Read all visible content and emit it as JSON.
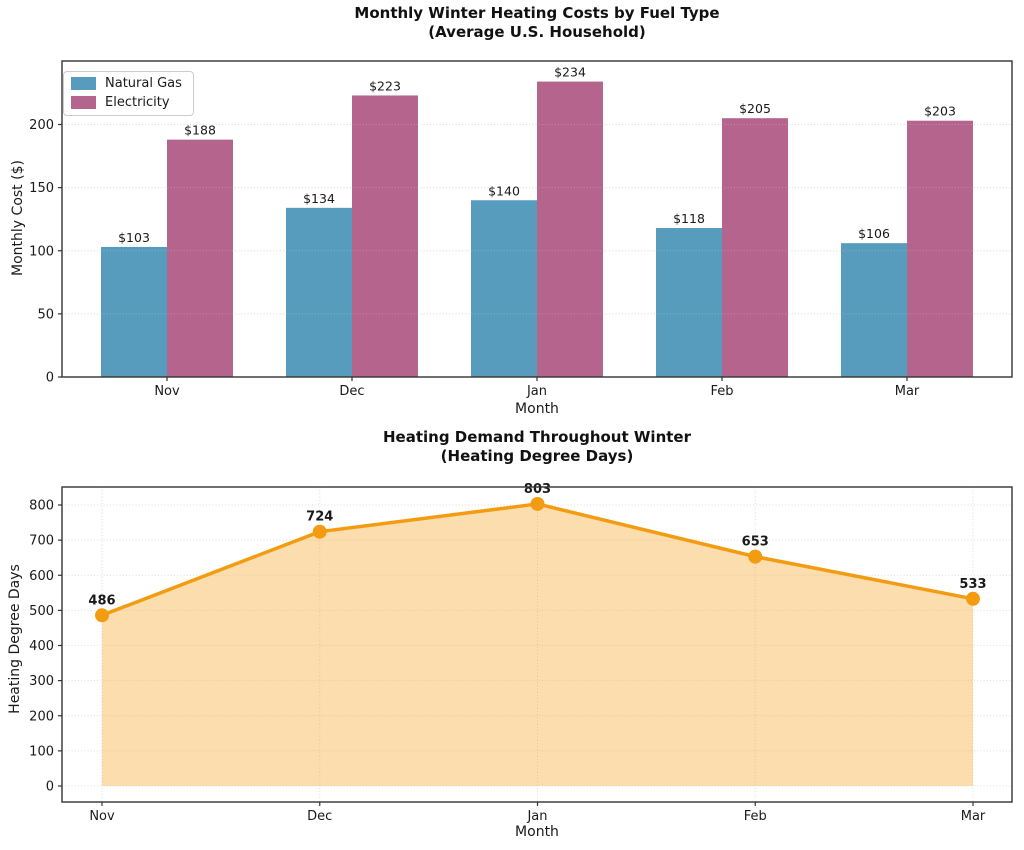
{
  "chart_data": [
    {
      "type": "bar",
      "title": "Monthly Winter Heating Costs by Fuel Type",
      "subtitle": "(Average U.S. Household)",
      "xlabel": "Month",
      "ylabel": "Monthly Cost ($)",
      "categories": [
        "Nov",
        "Dec",
        "Jan",
        "Feb",
        "Mar"
      ],
      "series": [
        {
          "name": "Natural Gas",
          "color": "#579CBC",
          "values": [
            103,
            134,
            140,
            118,
            106
          ],
          "value_labels": [
            "$103",
            "$134",
            "$140",
            "$118",
            "$106"
          ]
        },
        {
          "name": "Electricity",
          "color": "#B5648E",
          "values": [
            188,
            223,
            234,
            205,
            203
          ],
          "value_labels": [
            "$188",
            "$223",
            "$234",
            "$205",
            "$203"
          ]
        }
      ],
      "y_ticks": [
        0,
        50,
        100,
        150,
        200
      ],
      "ylim": [
        0,
        250
      ],
      "grid": "horizontal-dotted",
      "legend_position": "upper-left"
    },
    {
      "type": "area",
      "title": "Heating Demand Throughout Winter",
      "subtitle": "(Heating Degree Days)",
      "xlabel": "Month",
      "ylabel": "Heating Degree Days",
      "categories": [
        "Nov",
        "Dec",
        "Jan",
        "Feb",
        "Mar"
      ],
      "values": [
        486,
        724,
        803,
        653,
        533
      ],
      "value_labels": [
        "486",
        "724",
        "803",
        "653",
        "533"
      ],
      "line_color": "#F39C12",
      "fill_color": "rgba(243,156,18,0.34)",
      "y_ticks": [
        0,
        100,
        200,
        300,
        400,
        500,
        600,
        700,
        800
      ],
      "ylim": [
        -46,
        851
      ],
      "grid": "both-dotted",
      "legend_position": "none"
    }
  ],
  "style": {
    "grid_color": "#dcdcdc",
    "spine_color": "#333333",
    "text_color": "#1a1a1a"
  }
}
